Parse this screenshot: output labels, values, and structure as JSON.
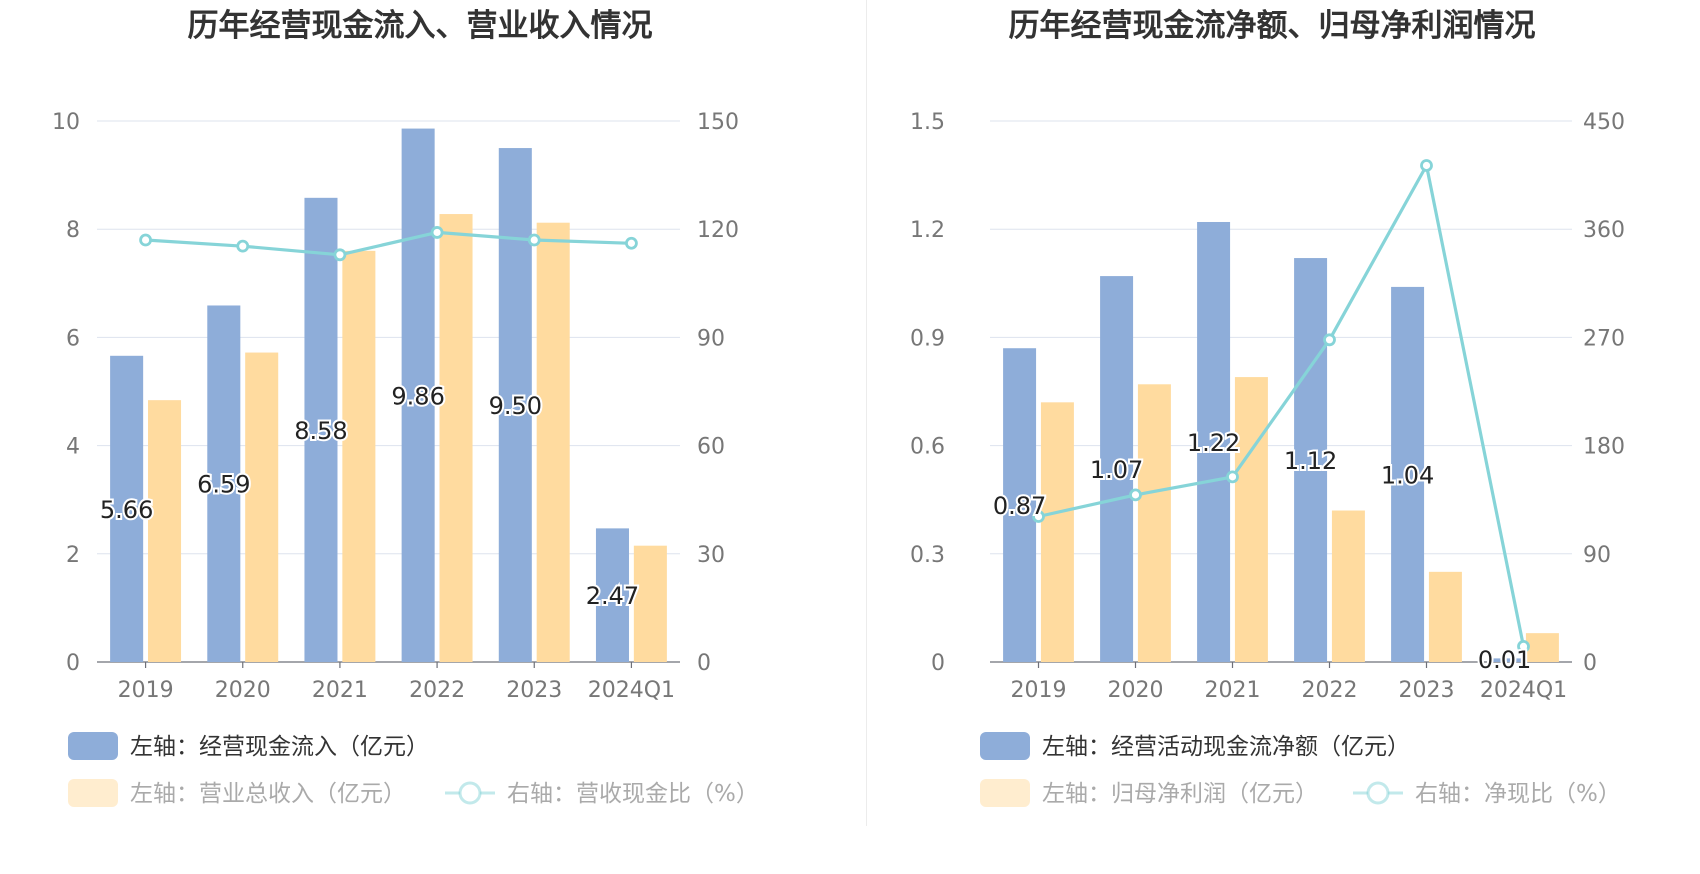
{
  "colors": {
    "bar_left": "#8eadd9",
    "bar_right": "#ffdb9f",
    "line": "#86d4d8",
    "grid": "#dde3ee",
    "axis_text": "#777777",
    "title": "#333333",
    "legend_text": "#333333",
    "legend_text_dim": "#aaaaaa"
  },
  "chart_data": [
    {
      "type": "bar",
      "title": "历年经营现金流入、营业收入情况",
      "categories": [
        "2019",
        "2020",
        "2021",
        "2022",
        "2023",
        "2024Q1"
      ],
      "left_axis": {
        "ticks": [
          "0",
          "2",
          "4",
          "6",
          "8",
          "10"
        ],
        "ylim": [
          0,
          10
        ]
      },
      "right_axis": {
        "ticks": [
          "0",
          "30",
          "60",
          "90",
          "120",
          "150"
        ],
        "ylim": [
          0,
          150
        ]
      },
      "series": [
        {
          "name": "左轴：经营现金流入（亿元）",
          "axis": "left",
          "kind": "bar",
          "color_key": "bar_left",
          "values": [
            5.66,
            6.59,
            8.58,
            9.86,
            9.5,
            2.47
          ],
          "labels": [
            "5.66",
            "6.59",
            "8.58",
            "9.86",
            "9.50",
            "2.47"
          ]
        },
        {
          "name": "左轴：营业总收入（亿元）",
          "axis": "left",
          "kind": "bar",
          "color_key": "bar_right",
          "values": [
            4.84,
            5.72,
            7.6,
            8.28,
            8.12,
            2.15
          ]
        },
        {
          "name": "右轴：营收现金比（%）",
          "axis": "right",
          "kind": "line",
          "color_key": "line",
          "values": [
            117,
            115.3,
            112.9,
            119.1,
            117,
            116.1
          ]
        }
      ],
      "legend": {
        "row1": [
          {
            "label": "左轴：经营现金流入（亿元）",
            "kind": "bar",
            "color_key": "bar_left",
            "dim": false
          }
        ],
        "row2": [
          {
            "label": "左轴：营业总收入（亿元）",
            "kind": "bar",
            "color_key": "bar_right",
            "dim": true
          },
          {
            "label": "右轴：营收现金比（%）",
            "kind": "line",
            "color_key": "line",
            "dim": true
          }
        ]
      }
    },
    {
      "type": "bar",
      "title": "历年经营现金流净额、归母净利润情况",
      "categories": [
        "2019",
        "2020",
        "2021",
        "2022",
        "2023",
        "2024Q1"
      ],
      "left_axis": {
        "ticks": [
          "0",
          "0.3",
          "0.6",
          "0.9",
          "1.2",
          "1.5"
        ],
        "ylim": [
          0,
          1.5
        ]
      },
      "right_axis": {
        "ticks": [
          "0",
          "90",
          "180",
          "270",
          "360",
          "450"
        ],
        "ylim": [
          0,
          450
        ]
      },
      "series": [
        {
          "name": "左轴：经营活动现金流净额（亿元）",
          "axis": "left",
          "kind": "bar",
          "color_key": "bar_left",
          "values": [
            0.87,
            1.07,
            1.22,
            1.12,
            1.04,
            0.01
          ],
          "labels": [
            "0.87",
            "1.07",
            "1.22",
            "1.12",
            "1.04",
            "0.01"
          ]
        },
        {
          "name": "左轴：归母净利润（亿元）",
          "axis": "left",
          "kind": "bar",
          "color_key": "bar_right",
          "values": [
            0.72,
            0.77,
            0.79,
            0.42,
            0.25,
            0.08
          ]
        },
        {
          "name": "右轴：净现比（%）",
          "axis": "right",
          "kind": "line",
          "color_key": "line",
          "values": [
            121,
            139,
            154,
            268,
            413,
            13
          ]
        }
      ],
      "legend": {
        "row1": [
          {
            "label": "左轴：经营活动现金流净额（亿元）",
            "kind": "bar",
            "color_key": "bar_left",
            "dim": false
          }
        ],
        "row2": [
          {
            "label": "左轴：归母净利润（亿元）",
            "kind": "bar",
            "color_key": "bar_right",
            "dim": true
          },
          {
            "label": "右轴：净现比（%）",
            "kind": "line",
            "color_key": "line",
            "dim": true
          }
        ]
      }
    }
  ]
}
